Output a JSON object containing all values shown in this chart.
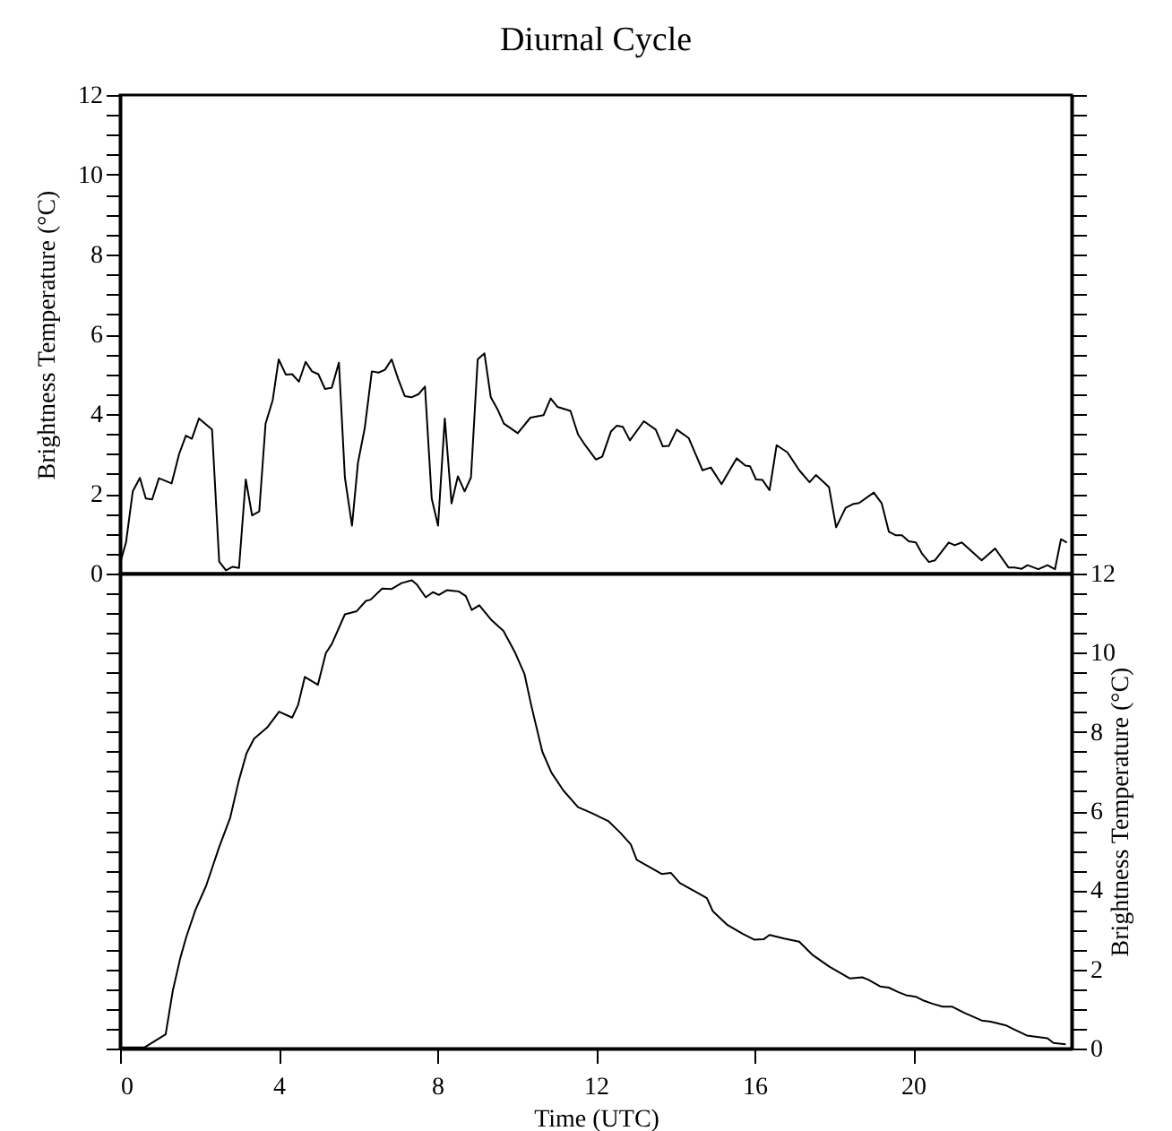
{
  "chart_data": [
    {
      "type": "line",
      "title": "Diurnal Cycle",
      "ylabel": "Brightness Temperature (°C)",
      "xlim": [
        0,
        24
      ],
      "xticks": [
        0,
        4,
        8,
        12,
        16,
        20
      ],
      "ylim": [
        0,
        12
      ],
      "yticks": [
        0,
        {
          "value": 0.5,
          "label": null
        },
        {
          "value": 1,
          "label": null
        },
        {
          "value": 1.5,
          "label": null
        },
        2,
        {
          "value": 2.5,
          "label": null
        },
        {
          "value": 3,
          "label": null
        },
        {
          "value": 3.5,
          "label": null
        },
        4,
        {
          "value": 4.5,
          "label": null
        },
        {
          "value": 5,
          "label": null
        },
        {
          "value": 5.5,
          "label": null
        },
        6,
        {
          "value": 6.5,
          "label": null
        },
        {
          "value": 7,
          "label": null
        },
        {
          "value": 7.5,
          "label": null
        },
        8,
        {
          "value": 8.5,
          "label": null
        },
        {
          "value": 9,
          "label": null
        },
        {
          "value": 9.5,
          "label": null
        },
        10,
        {
          "value": 10.5,
          "label": null
        },
        {
          "value": 11,
          "label": null
        },
        {
          "value": 11.5,
          "label": null
        },
        12
      ],
      "tick_labels": "y",
      "series": [
        {
          "color": "#000000",
          "x": [
            0,
            0.15,
            0.32,
            0.5,
            0.65,
            0.81,
            0.98,
            1.3,
            1.49,
            1.66,
            1.81,
            1.99,
            2.32,
            2.5,
            2.67,
            2.84,
            3.0,
            3.17,
            3.33,
            3.51,
            3.67,
            3.85,
            4.0,
            4.18,
            4.34,
            4.51,
            4.68,
            4.84,
            5.0,
            5.17,
            5.34,
            5.52,
            5.67,
            5.85,
            6.0,
            6.17,
            6.35,
            6.52,
            6.68,
            6.85,
            7.01,
            7.18,
            7.35,
            7.53,
            7.69,
            7.86,
            8.02,
            8.19,
            8.36,
            8.52,
            8.69,
            8.85,
            9.02,
            9.19,
            9.35,
            9.52,
            9.68,
            10.03,
            10.35,
            10.68,
            10.86,
            11.03,
            11.36,
            11.55,
            11.73,
            12.0,
            12.16,
            12.38,
            12.53,
            12.68,
            12.86,
            13.21,
            13.51,
            13.69,
            13.84,
            14.04,
            14.34,
            14.69,
            14.9,
            15.17,
            15.55,
            15.77,
            15.89,
            16.04,
            16.2,
            16.38,
            16.56,
            16.83,
            17.13,
            17.39,
            17.55,
            17.88,
            18.06,
            18.3,
            18.48,
            18.64,
            19.01,
            19.21,
            19.39,
            19.57,
            19.72,
            19.89,
            20.07,
            20.22,
            20.4,
            20.55,
            20.9,
            21.05,
            21.23,
            21.73,
            22.07,
            22.41,
            22.56,
            22.74,
            22.89,
            23.16,
            23.39,
            23.58,
            23.73,
            23.88
          ],
          "values": [
            0.26,
            0.78,
            2.06,
            2.4,
            1.88,
            1.86,
            2.39,
            2.26,
            3.0,
            3.46,
            3.38,
            3.89,
            3.61,
            0.3,
            0.08,
            0.17,
            0.14,
            2.36,
            1.46,
            1.56,
            3.76,
            4.35,
            5.37,
            4.99,
            5.0,
            4.81,
            5.31,
            5.07,
            5.0,
            4.63,
            4.66,
            5.29,
            2.41,
            1.2,
            2.78,
            3.64,
            5.07,
            5.04,
            5.11,
            5.37,
            4.89,
            4.45,
            4.42,
            4.5,
            4.69,
            1.88,
            1.2,
            3.89,
            1.76,
            2.44,
            2.06,
            2.41,
            5.37,
            5.52,
            4.42,
            4.12,
            3.76,
            3.52,
            3.91,
            3.97,
            4.39,
            4.18,
            4.08,
            3.49,
            3.22,
            2.86,
            2.93,
            3.56,
            3.71,
            3.68,
            3.34,
            3.82,
            3.61,
            3.19,
            3.2,
            3.61,
            3.4,
            2.59,
            2.66,
            2.24,
            2.89,
            2.71,
            2.69,
            2.36,
            2.35,
            2.09,
            3.22,
            3.04,
            2.59,
            2.29,
            2.47,
            2.17,
            1.16,
            1.65,
            1.74,
            1.77,
            2.03,
            1.76,
            1.05,
            0.96,
            0.96,
            0.81,
            0.78,
            0.51,
            0.29,
            0.33,
            0.78,
            0.71,
            0.78,
            0.33,
            0.63,
            0.15,
            0.15,
            0.12,
            0.21,
            0.11,
            0.21,
            0.11,
            0.86,
            0.78
          ]
        }
      ]
    },
    {
      "type": "line",
      "xlabel": "Time (UTC)",
      "y2label": "Brightness Temperature (°C)",
      "xlim": [
        0,
        24
      ],
      "xticks": [
        0,
        4,
        8,
        12,
        16,
        20
      ],
      "y2lim": [
        0,
        12
      ],
      "y2ticks": [
        0,
        {
          "value": 0.5,
          "label": null
        },
        {
          "value": 1,
          "label": null
        },
        {
          "value": 1.5,
          "label": null
        },
        2,
        {
          "value": 2.5,
          "label": null
        },
        {
          "value": 3,
          "label": null
        },
        {
          "value": 3.5,
          "label": null
        },
        4,
        {
          "value": 4.5,
          "label": null
        },
        {
          "value": 5,
          "label": null
        },
        {
          "value": 5.5,
          "label": null
        },
        6,
        {
          "value": 6.5,
          "label": null
        },
        {
          "value": 7,
          "label": null
        },
        {
          "value": 7.5,
          "label": null
        },
        8,
        {
          "value": 8.5,
          "label": null
        },
        {
          "value": 9,
          "label": null
        },
        {
          "value": 9.5,
          "label": null
        },
        10,
        {
          "value": 10.5,
          "label": null
        },
        {
          "value": 11,
          "label": null
        },
        {
          "value": 11.5,
          "label": null
        },
        12
      ],
      "series": [
        {
          "color": "#000000",
          "axis": "y2",
          "x": [
            0,
            0.32,
            0.62,
            1.15,
            1.33,
            1.52,
            1.67,
            1.9,
            2.17,
            2.5,
            2.78,
            2.99,
            3.19,
            3.38,
            3.71,
            4.01,
            4.34,
            4.49,
            4.66,
            4.99,
            5.19,
            5.34,
            5.67,
            5.97,
            6.2,
            6.32,
            6.61,
            6.85,
            7.1,
            7.36,
            7.48,
            7.71,
            7.89,
            8.04,
            8.24,
            8.54,
            8.72,
            8.87,
            9.06,
            9.37,
            9.67,
            9.97,
            10.2,
            10.38,
            10.65,
            10.88,
            11.18,
            11.55,
            11.89,
            12.31,
            12.61,
            12.88,
            13.03,
            13.33,
            13.66,
            13.89,
            14.12,
            14.54,
            14.8,
            14.95,
            15.32,
            15.7,
            16.0,
            16.23,
            16.38,
            16.75,
            17.13,
            17.46,
            17.89,
            18.41,
            18.72,
            18.87,
            19.17,
            19.39,
            19.62,
            19.85,
            20.07,
            20.27,
            20.5,
            20.75,
            20.98,
            21.28,
            21.73,
            21.96,
            22.33,
            22.56,
            22.87,
            23.17,
            23.39,
            23.54,
            23.85
          ],
          "values": [
            0.03,
            0.03,
            0.03,
            0.36,
            1.46,
            2.29,
            2.82,
            3.5,
            4.11,
            5.09,
            5.84,
            6.75,
            7.46,
            7.83,
            8.11,
            8.51,
            8.36,
            8.68,
            9.39,
            9.19,
            9.99,
            10.22,
            10.97,
            11.05,
            11.31,
            11.34,
            11.62,
            11.61,
            11.76,
            11.83,
            11.73,
            11.4,
            11.53,
            11.46,
            11.58,
            11.55,
            11.43,
            11.08,
            11.2,
            10.82,
            10.55,
            9.99,
            9.46,
            8.63,
            7.5,
            6.97,
            6.52,
            6.1,
            5.95,
            5.75,
            5.46,
            5.16,
            4.77,
            4.6,
            4.41,
            4.44,
            4.18,
            3.95,
            3.8,
            3.47,
            3.12,
            2.9,
            2.75,
            2.76,
            2.87,
            2.78,
            2.7,
            2.37,
            2.07,
            1.77,
            1.8,
            1.74,
            1.57,
            1.54,
            1.43,
            1.34,
            1.31,
            1.21,
            1.13,
            1.06,
            1.06,
            0.91,
            0.71,
            0.68,
            0.59,
            0.48,
            0.33,
            0.29,
            0.26,
            0.14,
            0.11
          ]
        }
      ]
    }
  ]
}
